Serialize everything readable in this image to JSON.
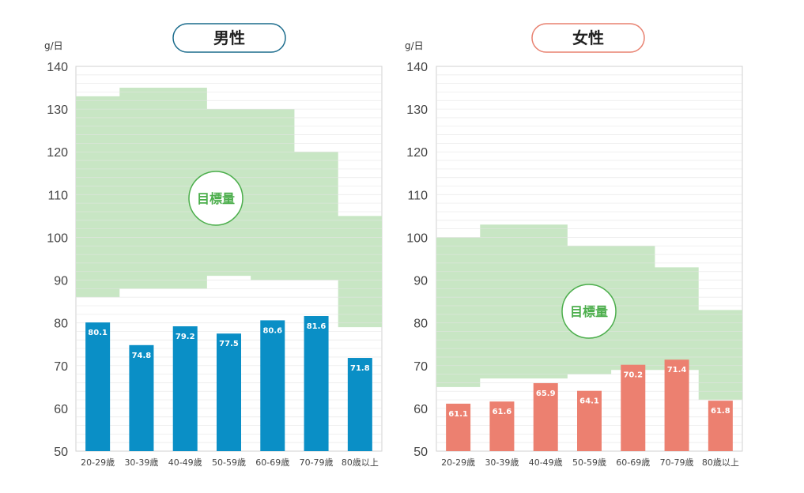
{
  "chart_data": [
    {
      "type": "bar",
      "title": "男性",
      "unit_label": "g/日",
      "ylim": [
        50,
        140
      ],
      "yticks": [
        50,
        60,
        70,
        80,
        90,
        100,
        110,
        120,
        130,
        140
      ],
      "categories": [
        "20-29歳",
        "30-39歳",
        "40-49歳",
        "50-59歳",
        "60-69歳",
        "70-79歳",
        "80歳以上"
      ],
      "series": [
        {
          "values": [
            80.1,
            74.8,
            79.2,
            77.5,
            80.6,
            81.6,
            71.8
          ]
        }
      ],
      "target_band": {
        "label": "目標量",
        "lower": [
          86,
          88,
          88,
          91,
          90,
          90,
          79
        ],
        "upper": [
          133,
          135,
          135,
          130,
          130,
          120,
          105
        ]
      },
      "colors": {
        "bar": "#0a8fc6",
        "band": "#c8e6c4",
        "band_label": "#4cae4c",
        "title_border": "#1a6b8c"
      }
    },
    {
      "type": "bar",
      "title": "女性",
      "unit_label": "g/日",
      "ylim": [
        50,
        140
      ],
      "yticks": [
        50,
        60,
        70,
        80,
        90,
        100,
        110,
        120,
        130,
        140
      ],
      "categories": [
        "20-29歳",
        "30-39歳",
        "40-49歳",
        "50-59歳",
        "60-69歳",
        "70-79歳",
        "80歳以上"
      ],
      "series": [
        {
          "values": [
            61.1,
            61.6,
            65.9,
            64.1,
            70.2,
            71.4,
            61.8
          ]
        }
      ],
      "target_band": {
        "label": "目標量",
        "lower": [
          65,
          67,
          67,
          68,
          69,
          69,
          62
        ],
        "upper": [
          100,
          103,
          103,
          98,
          98,
          93,
          83
        ]
      },
      "colors": {
        "bar": "#ec8070",
        "band": "#c8e6c4",
        "band_label": "#4cae4c",
        "title_border": "#e8806f"
      }
    }
  ]
}
